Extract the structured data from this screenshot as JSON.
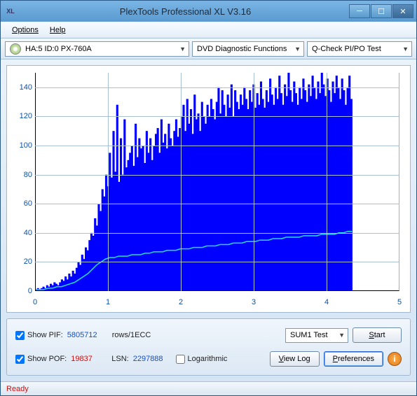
{
  "window": {
    "title": "PlexTools Professional XL V3.16"
  },
  "menu": {
    "options": "Options",
    "help": "Help"
  },
  "toolbar": {
    "drive": "HA:5 ID:0  PX-760A",
    "function": "DVD Diagnostic Functions",
    "test": "Q-Check PI/PO Test"
  },
  "chart": {
    "ymin": 0,
    "ymax": 150,
    "ystep": 20,
    "xmin": 0,
    "xmax": 5,
    "xstep": 1,
    "xdata_max": 4.35,
    "bar_color": "#0000ff",
    "line_color": "#20e0d0",
    "grid_color": "#a8c0d8",
    "tick_color": "#1050a0",
    "background": "#ffffff",
    "font_size": 11,
    "bars": [
      1,
      2,
      1,
      2,
      3,
      2,
      4,
      3,
      5,
      4,
      6,
      5,
      4,
      6,
      8,
      7,
      10,
      8,
      12,
      10,
      14,
      12,
      16,
      20,
      18,
      25,
      22,
      30,
      28,
      35,
      40,
      38,
      50,
      45,
      60,
      55,
      70,
      65,
      80,
      72,
      95,
      78,
      110,
      82,
      128,
      75,
      105,
      80,
      118,
      85,
      90,
      95,
      100,
      86,
      115,
      92,
      105,
      98,
      100,
      88,
      110,
      95,
      105,
      90,
      100,
      108,
      112,
      95,
      118,
      102,
      108,
      98,
      115,
      105,
      100,
      110,
      118,
      106,
      112,
      120,
      128,
      110,
      132,
      115,
      125,
      108,
      135,
      118,
      122,
      110,
      130,
      120,
      115,
      128,
      120,
      132,
      125,
      118,
      130,
      140,
      122,
      138,
      128,
      120,
      135,
      126,
      142,
      120,
      138,
      130,
      125,
      135,
      128,
      140,
      132,
      125,
      138,
      130,
      142,
      126,
      136,
      128,
      144,
      132,
      126,
      138,
      130,
      146,
      135,
      128,
      140,
      132,
      148,
      136,
      128,
      142,
      134,
      150,
      138,
      130,
      144,
      136,
      128,
      140,
      132,
      146,
      138,
      130,
      142,
      134,
      148,
      140,
      132,
      144,
      136,
      150,
      142,
      134,
      146,
      138,
      130,
      144,
      136,
      148,
      140,
      132,
      146,
      138,
      128,
      140,
      148,
      132
    ],
    "line": [
      1,
      1,
      1,
      2,
      2,
      3,
      3,
      4,
      5,
      6,
      8,
      10,
      12,
      15,
      18,
      20,
      22,
      23,
      23,
      24,
      24,
      24,
      25,
      25,
      25,
      26,
      26,
      27,
      27,
      27,
      28,
      28,
      28,
      29,
      29,
      29,
      30,
      30,
      30,
      31,
      31,
      31,
      32,
      32,
      32,
      33,
      33,
      33,
      34,
      34,
      34,
      35,
      35,
      35,
      36,
      36,
      36,
      37,
      37,
      37,
      37,
      38,
      38,
      38,
      38,
      39,
      39,
      39,
      39,
      40,
      40,
      41,
      41
    ]
  },
  "controls": {
    "show_pif_label": "Show PIF:",
    "pif_value": "5805712",
    "pif_unit": "rows/1ECC",
    "show_pof_label": "Show POF:",
    "pof_value": "19837",
    "lsn_label": "LSN:",
    "lsn_value": "2297888",
    "log_label": "Logarithmic",
    "sum_test": "SUM1 Test",
    "start": "Start",
    "start_u": "S",
    "viewlog": "View Log",
    "viewlog_u": "V",
    "prefs": "Preferences",
    "prefs_u": "P"
  },
  "status": {
    "text": "Ready"
  }
}
